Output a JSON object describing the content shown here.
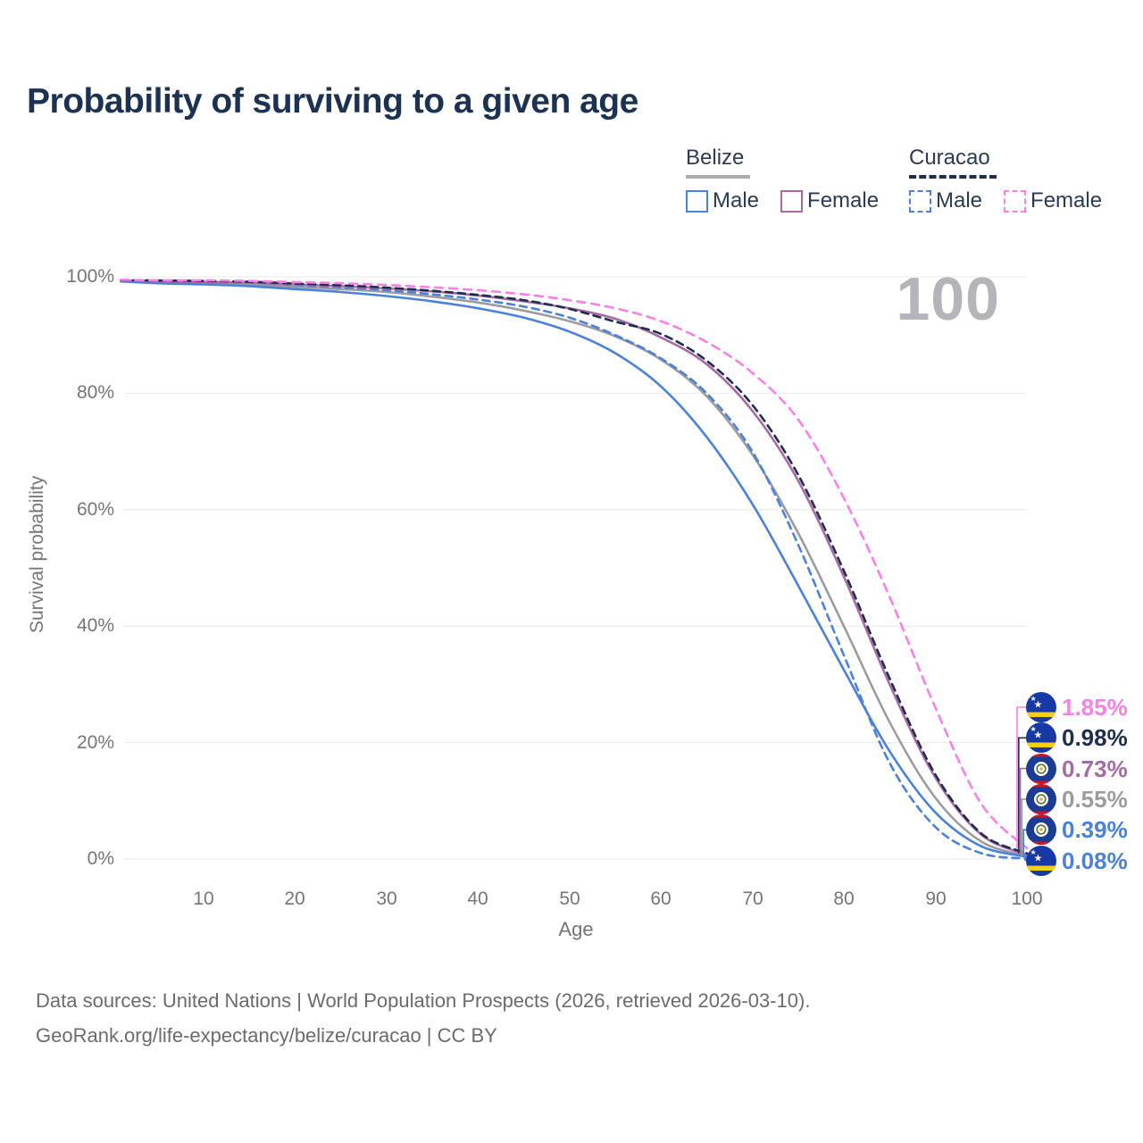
{
  "title": "Probability of surviving to a given age",
  "watermark_age": "100",
  "legend": {
    "groups": [
      {
        "country": "Belize",
        "line_style": "solid",
        "underline_color": "#ababab",
        "items": [
          {
            "label": "Male",
            "color": "#4a82d9",
            "dashed": false
          },
          {
            "label": "Female",
            "color": "#a66ba6",
            "dashed": false
          }
        ]
      },
      {
        "country": "Curacao",
        "line_style": "dashed",
        "underline_color": "#1f2e4d",
        "items": [
          {
            "label": "Male",
            "color": "#4a82d9",
            "dashed": true
          },
          {
            "label": "Female",
            "color": "#fa7fe8",
            "dashed": true
          }
        ]
      }
    ]
  },
  "axes": {
    "y_title": "Survival probability",
    "x_title": "Age",
    "y_ticks": [
      "100%",
      "80%",
      "60%",
      "40%",
      "20%",
      "0%"
    ],
    "x_ticks": [
      "10",
      "20",
      "30",
      "40",
      "50",
      "60",
      "70",
      "80",
      "90",
      "100"
    ]
  },
  "footer": {
    "line1": "Data sources: United Nations | World Population Prospects (2026, retrieved 2026-03-10).",
    "line2": "GeoRank.org/life-expectancy/belize/curacao | CC BY"
  },
  "chart_data": {
    "type": "line",
    "xlabel": "Age",
    "ylabel": "Survival probability",
    "xlim": [
      0,
      100
    ],
    "ylim": [
      0,
      100
    ],
    "grid": "horizontal",
    "legend_position": "top-right",
    "x": [
      1,
      5,
      10,
      15,
      20,
      25,
      30,
      35,
      40,
      45,
      50,
      55,
      60,
      65,
      70,
      75,
      80,
      85,
      90,
      95,
      100
    ],
    "series": [
      {
        "key": "belize_male",
        "name": "Belize Male",
        "color": "#4a82d9",
        "dash": null,
        "values": [
          99.2,
          98.9,
          98.7,
          98.4,
          97.9,
          97.4,
          96.7,
          95.8,
          94.6,
          93.0,
          90.6,
          86.9,
          81.2,
          72.5,
          61.0,
          47.0,
          32.5,
          18.5,
          8.0,
          2.2,
          0.39
        ]
      },
      {
        "key": "belize_female",
        "name": "Belize Female",
        "color": "#a66ba6",
        "dash": null,
        "values": [
          99.4,
          99.2,
          99.1,
          99.0,
          98.7,
          98.4,
          98.0,
          97.5,
          96.8,
          95.8,
          94.6,
          92.8,
          89.6,
          85.0,
          77.0,
          65.0,
          48.5,
          30.0,
          14.0,
          4.2,
          0.73
        ]
      },
      {
        "key": "belize_total",
        "name": "Belize (both sexes)",
        "color": "#9c9ca0",
        "dash": null,
        "values": [
          99.3,
          99.0,
          98.9,
          98.7,
          98.3,
          97.9,
          97.4,
          96.6,
          95.6,
          94.2,
          92.4,
          89.8,
          85.8,
          79.5,
          69.5,
          56.0,
          40.0,
          23.5,
          10.5,
          3.0,
          0.55
        ]
      },
      {
        "key": "curacao_male",
        "name": "Curacao Male",
        "color": "#4a82d9",
        "dash": "8 6",
        "values": [
          99.4,
          99.3,
          99.2,
          99.0,
          98.6,
          98.2,
          97.7,
          97.0,
          96.1,
          94.9,
          93.0,
          90.0,
          86.0,
          80.0,
          70.0,
          54.0,
          35.0,
          16.5,
          5.5,
          1.0,
          0.08
        ]
      },
      {
        "key": "curacao_female",
        "name": "Curacao Female",
        "color": "#fa7fe8",
        "dash": "9 7",
        "values": [
          99.5,
          99.4,
          99.4,
          99.3,
          99.1,
          98.9,
          98.6,
          98.2,
          97.7,
          97.0,
          96.0,
          94.6,
          92.4,
          88.8,
          83.5,
          75.5,
          62.0,
          45.0,
          26.0,
          9.5,
          1.85
        ]
      },
      {
        "key": "curacao_total",
        "name": "Curacao (both sexes)",
        "color": "#1f2e4d",
        "dash": "8 6",
        "values": [
          99.45,
          99.37,
          99.3,
          99.15,
          98.85,
          98.55,
          98.15,
          97.6,
          96.9,
          96.0,
          94.5,
          92.3,
          90.2,
          85.6,
          78.0,
          66.0,
          49.5,
          31.0,
          14.5,
          4.4,
          0.98
        ]
      }
    ],
    "draw_order": [
      "belize_total",
      "belize_male",
      "curacao_male",
      "belize_female",
      "curacao_total",
      "curacao_female"
    ],
    "end_labels": [
      {
        "text": "1.85%",
        "series_key": "curacao_female",
        "flag": "curacao",
        "color": "#fa7fe8"
      },
      {
        "text": "0.98%",
        "series_key": "curacao_total",
        "flag": "curacao",
        "color": "#1e2e4f"
      },
      {
        "text": "0.73%",
        "series_key": "belize_female",
        "flag": "belize",
        "color": "#a66ba6"
      },
      {
        "text": "0.55%",
        "series_key": "belize_total",
        "flag": "belize",
        "color": "#9c9ca0"
      },
      {
        "text": "0.39%",
        "series_key": "belize_male",
        "flag": "belize",
        "color": "#4a82d9"
      },
      {
        "text": "0.08%",
        "series_key": "curacao_male",
        "flag": "curacao",
        "color": "#4a82d9"
      }
    ],
    "flag_colors": {
      "curacao": {
        "blue": "#1739a6",
        "yellow": "#f4d012",
        "star": "#ffffff"
      },
      "belize": {
        "blue": "#1b3c94",
        "red": "#cf1428",
        "circle": "#ffffff",
        "ring": "#5d6e3e"
      }
    }
  }
}
